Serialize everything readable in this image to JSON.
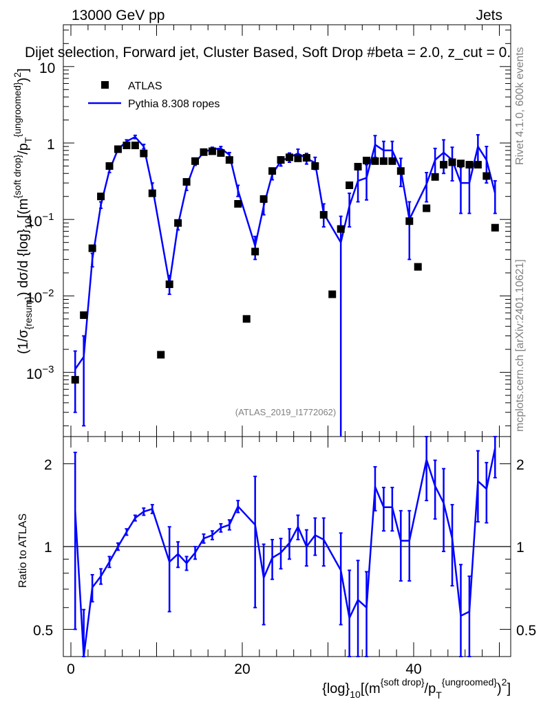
{
  "header": {
    "energy_label": "13000 GeV pp",
    "category_label": "Jets",
    "selection_title": "Dijet selection, Forward jet, Cluster Based, Soft Drop #beta = 2.0, z_cut = 0.",
    "side_label_rivet": "Rivet 4.1.0,  600k events",
    "side_label_site": "mcplots.cern.ch [arXiv:2401.10621]",
    "analysis_watermark": "(ATLAS_2019_I1772062)"
  },
  "chart_data": [
    {
      "type": "scatter",
      "title": "Dijet selection, Forward jet, Cluster Based, Soft Drop #beta = 2.0, z_cut = 0.",
      "ylabel": "(1/σ_{resum}) dσ/d {log}_{10}[(m^{soft drop}/p_T^{ungroomed})^2]",
      "yscale": "log",
      "ylim": [
        0.0002,
        30
      ],
      "xlim": [
        -1,
        51
      ],
      "y_ticks": [
        "10^{-3}",
        "10^{-2}",
        "10^{-1}",
        "1",
        "10"
      ],
      "legend": {
        "position": "top-left",
        "entries": [
          "ATLAS",
          "Pythia 8.308 ropes"
        ]
      },
      "series": [
        {
          "name": "ATLAS",
          "style": "markers",
          "color": "#000000",
          "x": [
            0.5,
            1.5,
            2.5,
            3.5,
            4.5,
            5.5,
            6.5,
            7.5,
            8.5,
            9.5,
            10.5,
            11.5,
            12.5,
            13.5,
            14.5,
            15.5,
            16.5,
            17.5,
            18.5,
            19.5,
            20.5,
            21.5,
            22.5,
            23.5,
            24.5,
            25.5,
            26.5,
            27.5,
            28.5,
            29.5,
            30.5,
            31.5,
            32.5,
            33.5,
            34.5,
            35.5,
            36.5,
            37.5,
            38.5,
            39.5,
            40.5,
            41.5,
            42.5,
            43.5,
            44.5,
            45.5,
            46.5,
            47.5,
            48.5,
            49.5
          ],
          "y": [
            0.0008,
            0.0056,
            0.042,
            0.2,
            0.5,
            0.83,
            0.93,
            0.93,
            0.73,
            0.22,
            0.0017,
            0.0142,
            0.09,
            0.31,
            0.58,
            0.76,
            0.78,
            0.74,
            0.6,
            0.16,
            0.005,
            0.038,
            0.185,
            0.43,
            0.6,
            0.65,
            0.63,
            0.64,
            0.5,
            0.115,
            0.0105,
            0.075,
            0.28,
            0.49,
            0.59,
            0.58,
            0.58,
            0.58,
            0.43,
            0.095,
            0.024,
            0.14,
            0.36,
            0.52,
            0.56,
            0.54,
            0.52,
            0.52,
            0.37,
            0.078
          ]
        },
        {
          "name": "Pythia 8.308 ropes",
          "style": "line",
          "color": "#0000ff",
          "x": [
            0.5,
            1.5,
            2.5,
            3.5,
            4.5,
            5.5,
            6.5,
            7.5,
            8.5,
            9.5,
            11.5,
            12.5,
            13.5,
            14.5,
            15.5,
            16.5,
            17.5,
            18.5,
            19.5,
            21.5,
            22.5,
            23.5,
            24.5,
            25.5,
            26.5,
            27.5,
            28.5,
            29.5,
            31.5,
            32.5,
            33.5,
            34.5,
            35.5,
            36.5,
            37.5,
            38.5,
            39.5,
            41.5,
            42.5,
            43.5,
            44.5,
            45.5,
            46.5,
            47.5,
            48.5,
            49.5
          ],
          "y": [
            0.0011,
            0.0016,
            0.03,
            0.155,
            0.44,
            0.83,
            1.05,
            1.2,
            0.9,
            0.27,
            0.0145,
            0.085,
            0.27,
            0.55,
            0.76,
            0.83,
            0.85,
            0.7,
            0.24,
            0.045,
            0.15,
            0.39,
            0.58,
            0.65,
            0.73,
            0.63,
            0.55,
            0.12,
            0.05,
            0.15,
            0.32,
            0.35,
            0.95,
            0.8,
            0.8,
            0.45,
            0.1,
            0.29,
            0.6,
            0.75,
            0.6,
            0.3,
            0.3,
            0.9,
            0.6,
            0.22
          ],
          "yerr": [
            0.0008,
            0.0014,
            0.006,
            0.015,
            0.03,
            0.04,
            0.05,
            0.06,
            0.06,
            0.03,
            0.004,
            0.012,
            0.03,
            0.04,
            0.05,
            0.05,
            0.05,
            0.05,
            0.04,
            0.015,
            0.035,
            0.06,
            0.08,
            0.09,
            0.1,
            0.1,
            0.1,
            0.04,
            0.06,
            0.07,
            0.15,
            0.17,
            0.3,
            0.25,
            0.25,
            0.18,
            0.07,
            0.12,
            0.25,
            0.35,
            0.28,
            0.18,
            0.18,
            0.38,
            0.3,
            0.1
          ]
        }
      ]
    },
    {
      "type": "line",
      "ylabel": "Ratio to ATLAS",
      "xlabel": "{log}_{10}[(m^{soft drop}/p_T^{ungroomed})^2]",
      "xlim": [
        -1,
        51
      ],
      "ylim": [
        0.42,
        2.3
      ],
      "x_ticks": [
        0,
        20,
        40
      ],
      "y_ticks": [
        0.5,
        1,
        2
      ],
      "reference_line": 1,
      "series": [
        {
          "name": "Pythia 8.308 ropes / ATLAS",
          "color": "#0000ff",
          "x": [
            0.5,
            1.5,
            2.5,
            3.5,
            4.5,
            5.5,
            6.5,
            7.5,
            8.5,
            9.5,
            11.5,
            12.5,
            13.5,
            14.5,
            15.5,
            16.5,
            17.5,
            18.5,
            19.5,
            21.5,
            22.5,
            23.5,
            24.5,
            25.5,
            26.5,
            27.5,
            28.5,
            29.5,
            31.5,
            32.5,
            33.5,
            34.5,
            35.5,
            36.5,
            37.5,
            38.5,
            39.5,
            41.5,
            42.5,
            43.5,
            44.5,
            45.5,
            46.5,
            47.5,
            48.5,
            49.5
          ],
          "y": [
            1.35,
            0.29,
            0.71,
            0.78,
            0.88,
            1.0,
            1.13,
            1.27,
            1.34,
            1.37,
            0.88,
            0.94,
            0.87,
            0.95,
            1.07,
            1.1,
            1.17,
            1.2,
            1.4,
            1.2,
            0.77,
            0.91,
            0.95,
            1.03,
            1.18,
            1.0,
            1.1,
            1.06,
            0.82,
            0.55,
            0.64,
            0.6,
            1.65,
            1.39,
            1.39,
            1.05,
            1.05,
            2.07,
            1.66,
            1.44,
            1.07,
            0.56,
            0.58,
            1.73,
            1.62,
            2.28
          ],
          "yerr": [
            0.85,
            0.3,
            0.08,
            0.05,
            0.04,
            0.03,
            0.03,
            0.03,
            0.04,
            0.05,
            0.3,
            0.1,
            0.05,
            0.05,
            0.04,
            0.04,
            0.04,
            0.05,
            0.07,
            0.6,
            0.25,
            0.15,
            0.12,
            0.13,
            0.12,
            0.15,
            0.17,
            0.21,
            0.3,
            0.27,
            0.25,
            0.21,
            0.3,
            0.25,
            0.25,
            0.3,
            0.3,
            0.6,
            0.4,
            0.48,
            0.35,
            0.3,
            0.2,
            0.5,
            0.4,
            0.5
          ]
        }
      ]
    }
  ]
}
